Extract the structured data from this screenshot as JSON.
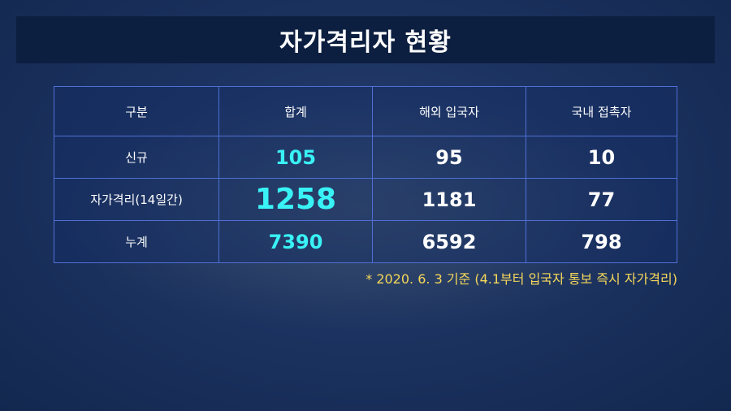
{
  "title": "자가격리자 현황",
  "colors": {
    "highlight": "#39f2f5",
    "note": "#f5d75a",
    "title_bar": "#0d1f40",
    "grid": "#4f6fd6"
  },
  "table": {
    "headers": [
      "구분",
      "합계",
      "해외 입국자",
      "국내 접촉자"
    ],
    "rows": [
      {
        "label": "신규",
        "total": "105",
        "overseas": "95",
        "domestic": "10"
      },
      {
        "label": "자가격리(14일간)",
        "total": "1258",
        "overseas": "1181",
        "domestic": "77"
      },
      {
        "label": "누계",
        "total": "7390",
        "overseas": "6592",
        "domestic": "798"
      }
    ]
  },
  "note": "* 2020. 6. 3 기준 (4.1부터 입국자 통보 즉시 자가격리)"
}
